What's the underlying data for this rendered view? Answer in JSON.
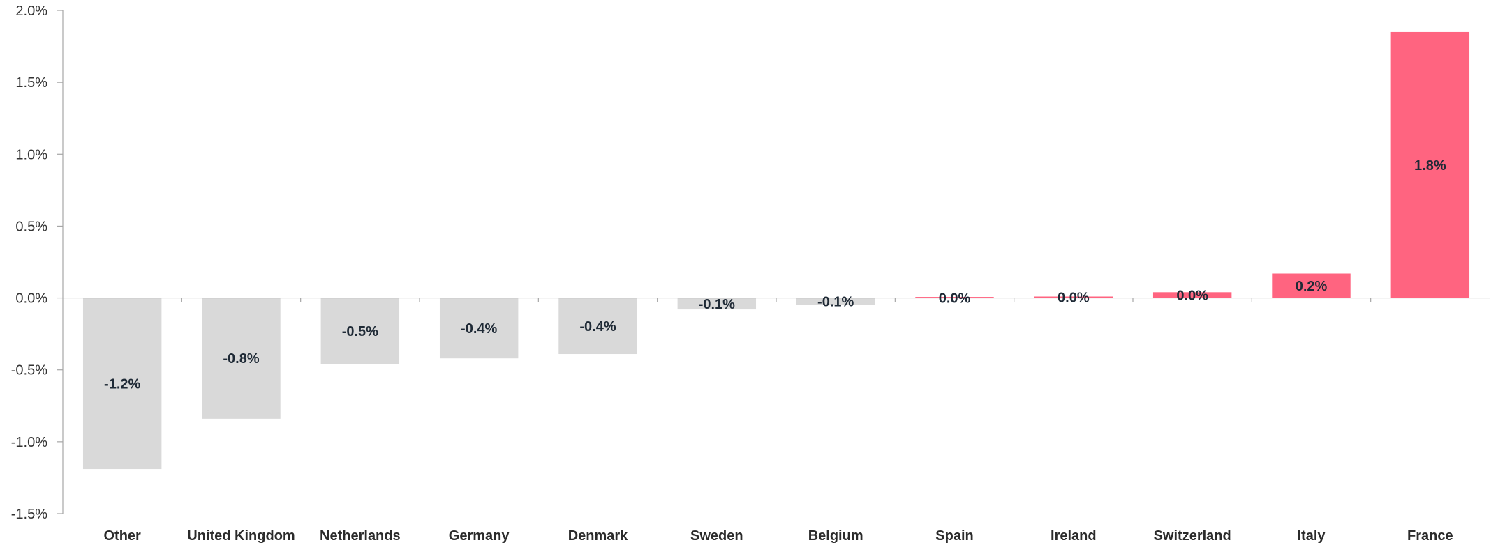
{
  "chart_data": {
    "type": "bar",
    "title": "",
    "xlabel": "",
    "ylabel": "",
    "ylim": [
      -1.5,
      2.0
    ],
    "yticks": [
      "2.0%",
      "1.5%",
      "1.0%",
      "0.5%",
      "0.0%",
      "-0.5%",
      "-1.0%",
      "-1.5%"
    ],
    "ytick_values": [
      2.0,
      1.5,
      1.0,
      0.5,
      0.0,
      -0.5,
      -1.0,
      -1.5
    ],
    "grid": false,
    "categories": [
      "Other",
      "United Kingdom",
      "Netherlands",
      "Germany",
      "Denmark",
      "Sweden",
      "Belgium",
      "Spain",
      "Ireland",
      "Switzerland",
      "Italy",
      "France"
    ],
    "values": [
      -1.19,
      -0.84,
      -0.46,
      -0.42,
      -0.39,
      -0.08,
      -0.05,
      0.0,
      0.01,
      0.04,
      0.17,
      1.85
    ],
    "data_labels": [
      "-1.2%",
      "-0.8%",
      "-0.5%",
      "-0.4%",
      "-0.4%",
      "-0.1%",
      "-0.1%",
      "0.0%",
      "0.0%",
      "0.0%",
      "0.2%",
      "1.8%"
    ],
    "colors": {
      "negative": "#d9d9d9",
      "positive": "#ff6480",
      "axis": "#a6a6a6"
    }
  }
}
